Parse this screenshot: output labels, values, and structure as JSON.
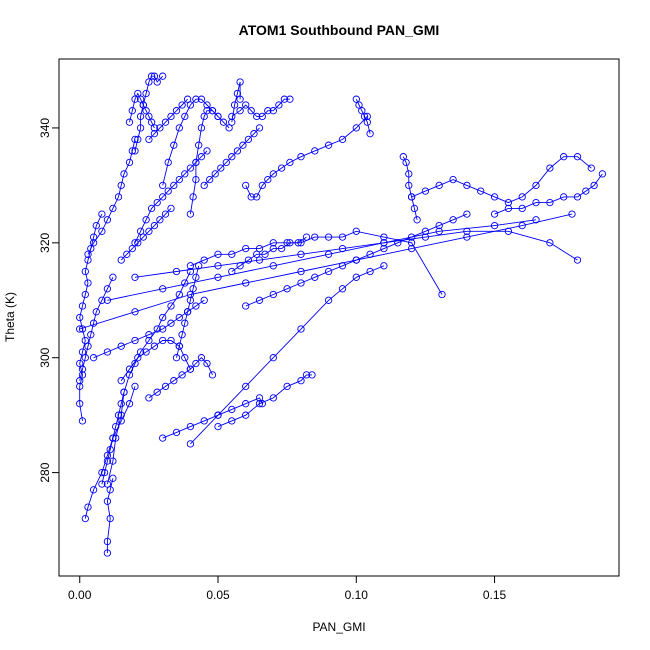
{
  "chart_data": {
    "type": "scatter",
    "title": "ATOM1 Southbound PAN_GMI",
    "xlabel": "PAN_GMI",
    "ylabel": "Theta (K)",
    "xlim": [
      -0.0075,
      0.195
    ],
    "ylim": [
      262,
      352
    ],
    "x_ticks": [
      0.0,
      0.05,
      0.1,
      0.15
    ],
    "x_tick_labels": [
      "0.00",
      "0.05",
      "0.10",
      "0.15"
    ],
    "y_ticks": [
      280,
      300,
      320,
      340
    ],
    "y_tick_labels": [
      "280",
      "300",
      "320",
      "340"
    ],
    "grid": false,
    "legend": "none",
    "marker": "open-circle",
    "connected": true,
    "color": "#0000ff",
    "series": [
      {
        "x": [
          0.01,
          0.01,
          0.011,
          0.01,
          0.011,
          0.012
        ],
        "y": [
          266,
          268,
          272,
          275,
          277,
          279
        ]
      },
      {
        "x": [
          0.002,
          0.003,
          0.005,
          0.008,
          0.01,
          0.012,
          0.015,
          0.018,
          0.02
        ],
        "y": [
          272,
          274,
          277,
          280,
          283,
          286,
          289,
          292,
          295
        ]
      },
      {
        "x": [
          0.01,
          0.012,
          0.013,
          0.015,
          0.016,
          0.018,
          0.02,
          0.022,
          0.025,
          0.028,
          0.03,
          0.033,
          0.036,
          0.038,
          0.04
        ],
        "y": [
          278,
          282,
          286,
          290,
          294,
          297,
          299,
          301,
          303,
          305,
          307,
          309,
          311,
          313,
          315
        ]
      },
      {
        "x": [
          0.001,
          0.0,
          0.0,
          0.001,
          0.0,
          0.001,
          0.002,
          0.001,
          0.0,
          0.001,
          0.002,
          0.003,
          0.002,
          0.003,
          0.004,
          0.005,
          0.006,
          0.008
        ],
        "y": [
          289,
          292,
          295,
          297,
          299,
          301,
          303,
          305,
          307,
          309,
          311,
          313,
          315,
          317,
          319,
          321,
          323,
          325
        ]
      },
      {
        "x": [
          0.003,
          0.005,
          0.008,
          0.01,
          0.012,
          0.014,
          0.015,
          0.016,
          0.018,
          0.019,
          0.02
        ],
        "y": [
          318,
          320,
          322,
          324,
          326,
          328,
          330,
          332,
          334,
          336,
          338
        ]
      },
      {
        "x": [
          0.02,
          0.021,
          0.022,
          0.022,
          0.023,
          0.024,
          0.025,
          0.026,
          0.027,
          0.028,
          0.03
        ],
        "y": [
          336,
          338,
          340,
          342,
          344,
          346,
          348,
          349,
          349,
          348,
          349
        ]
      },
      {
        "x": [
          0.018,
          0.019,
          0.02,
          0.021,
          0.022,
          0.023,
          0.024,
          0.025,
          0.026,
          0.027
        ],
        "y": [
          341,
          343,
          345,
          346,
          345,
          344,
          343,
          342,
          341,
          340
        ]
      },
      {
        "x": [
          0.03,
          0.032,
          0.034,
          0.036,
          0.038,
          0.04,
          0.042,
          0.044,
          0.046,
          0.048,
          0.05,
          0.052,
          0.054
        ],
        "y": [
          330,
          334,
          337,
          340,
          342,
          344,
          345,
          345,
          344,
          343,
          342,
          341,
          340
        ]
      },
      {
        "x": [
          0.04,
          0.041,
          0.042,
          0.042,
          0.043,
          0.044,
          0.045,
          0.046,
          0.048,
          0.05
        ],
        "y": [
          325,
          328,
          331,
          334,
          337,
          340,
          342,
          343,
          343,
          342
        ]
      },
      {
        "x": [
          0.055,
          0.058,
          0.06,
          0.062,
          0.064,
          0.066,
          0.068,
          0.07,
          0.072,
          0.074,
          0.076
        ],
        "y": [
          342,
          343,
          344,
          343,
          342,
          342,
          343,
          343,
          344,
          345,
          345
        ]
      },
      {
        "x": [
          0.055,
          0.056,
          0.057,
          0.058,
          0.058
        ],
        "y": [
          341,
          344,
          346,
          348,
          345
        ]
      },
      {
        "x": [
          0.06,
          0.062,
          0.064,
          0.066,
          0.068,
          0.07,
          0.073,
          0.076,
          0.08,
          0.085,
          0.09,
          0.095,
          0.1,
          0.104
        ],
        "y": [
          330,
          328,
          328,
          330,
          331,
          332,
          333,
          334,
          335,
          336,
          337,
          338,
          340,
          342
        ]
      },
      {
        "x": [
          0.1,
          0.101,
          0.102,
          0.103,
          0.104,
          0.105
        ],
        "y": [
          345,
          344,
          343,
          342,
          341,
          339
        ]
      },
      {
        "x": [
          0.117,
          0.118,
          0.119,
          0.119,
          0.12,
          0.121,
          0.122
        ],
        "y": [
          335,
          334,
          332,
          330,
          328,
          326,
          324
        ]
      },
      {
        "x": [
          0.12,
          0.125,
          0.13,
          0.135,
          0.14,
          0.145,
          0.15,
          0.155,
          0.16,
          0.165,
          0.17,
          0.175,
          0.18,
          0.185
        ],
        "y": [
          328,
          329,
          330,
          331,
          330,
          329,
          328,
          327,
          328,
          330,
          333,
          335,
          335,
          333
        ]
      },
      {
        "x": [
          0.15,
          0.155,
          0.16,
          0.165,
          0.17,
          0.175,
          0.18,
          0.183,
          0.186,
          0.189
        ],
        "y": [
          325,
          326,
          326,
          327,
          327,
          328,
          328,
          329,
          330,
          332
        ]
      },
      {
        "x": [
          0.0,
          0.02,
          0.04,
          0.06,
          0.08,
          0.1,
          0.12,
          0.14,
          0.16,
          0.178
        ],
        "y": [
          305,
          308,
          311,
          313,
          315,
          317,
          319,
          321,
          323,
          325
        ]
      },
      {
        "x": [
          0.01,
          0.03,
          0.05,
          0.07,
          0.09,
          0.11,
          0.13,
          0.15,
          0.165
        ],
        "y": [
          310,
          312,
          314,
          316,
          318,
          320,
          322,
          323,
          324
        ]
      },
      {
        "x": [
          0.02,
          0.035,
          0.05,
          0.065,
          0.08,
          0.095,
          0.11,
          0.125,
          0.14,
          0.155,
          0.17,
          0.18
        ],
        "y": [
          314,
          315,
          316,
          317,
          318,
          319,
          320,
          321,
          322,
          322,
          320,
          317
        ]
      },
      {
        "x": [
          0.04,
          0.045,
          0.05,
          0.055,
          0.06,
          0.065,
          0.07,
          0.075,
          0.08,
          0.085,
          0.09,
          0.095,
          0.1,
          0.11,
          0.12,
          0.131
        ],
        "y": [
          316,
          317,
          318,
          318,
          319,
          319,
          320,
          320,
          320,
          321,
          321,
          321,
          322,
          321,
          320,
          311
        ]
      },
      {
        "x": [
          0.04,
          0.05,
          0.06,
          0.07,
          0.08,
          0.09,
          0.095,
          0.1,
          0.105,
          0.11
        ],
        "y": [
          285,
          290,
          295,
          300,
          305,
          310,
          312,
          314,
          315,
          316
        ]
      },
      {
        "x": [
          0.05,
          0.055,
          0.06,
          0.065,
          0.07,
          0.075,
          0.08,
          0.082,
          0.084
        ],
        "y": [
          288,
          289,
          290,
          292,
          293,
          295,
          296,
          297,
          297
        ]
      },
      {
        "x": [
          0.03,
          0.035,
          0.04,
          0.045,
          0.05,
          0.055,
          0.06,
          0.065,
          0.066
        ],
        "y": [
          286,
          287,
          288,
          289,
          290,
          291,
          292,
          293,
          292
        ]
      },
      {
        "x": [
          0.025,
          0.028,
          0.031,
          0.034,
          0.037,
          0.04,
          0.042,
          0.044,
          0.046,
          0.048
        ],
        "y": [
          293,
          294,
          295,
          296,
          297,
          298,
          299,
          300,
          299,
          297
        ]
      },
      {
        "x": [
          0.005,
          0.01,
          0.015,
          0.02,
          0.025,
          0.03,
          0.033,
          0.036,
          0.039,
          0.042,
          0.045
        ],
        "y": [
          300,
          301,
          302,
          303,
          304,
          305,
          306,
          307,
          308,
          309,
          310
        ]
      },
      {
        "x": [
          0.015,
          0.018,
          0.021,
          0.024,
          0.027,
          0.03,
          0.033,
          0.036,
          0.038,
          0.04
        ],
        "y": [
          296,
          298,
          300,
          301,
          302,
          303,
          303,
          302,
          300,
          298
        ]
      },
      {
        "x": [
          0.02,
          0.022,
          0.024,
          0.026,
          0.028,
          0.03,
          0.032,
          0.034,
          0.036,
          0.038,
          0.04,
          0.042,
          0.044,
          0.046
        ],
        "y": [
          320,
          322,
          324,
          326,
          327,
          328,
          329,
          330,
          331,
          332,
          333,
          334,
          335,
          336
        ]
      },
      {
        "x": [
          0.045,
          0.047,
          0.049,
          0.051,
          0.053,
          0.055,
          0.057,
          0.059,
          0.061,
          0.063,
          0.065
        ],
        "y": [
          330,
          331,
          332,
          333,
          334,
          335,
          336,
          337,
          338,
          339,
          340
        ]
      },
      {
        "x": [
          0.035,
          0.036,
          0.037,
          0.038,
          0.039,
          0.04,
          0.041,
          0.042,
          0.043
        ],
        "y": [
          300,
          302,
          304,
          306,
          308,
          310,
          312,
          314,
          316
        ]
      },
      {
        "x": [
          0.0,
          0.001,
          0.002,
          0.003,
          0.004,
          0.005,
          0.006,
          0.008,
          0.01,
          0.012
        ],
        "y": [
          296,
          298,
          300,
          302,
          304,
          306,
          308,
          310,
          312,
          314
        ]
      },
      {
        "x": [
          0.008,
          0.009,
          0.01,
          0.011,
          0.012,
          0.013,
          0.014,
          0.015,
          0.016
        ],
        "y": [
          278,
          280,
          282,
          284,
          286,
          288,
          290,
          292,
          294
        ]
      },
      {
        "x": [
          0.015,
          0.017,
          0.019,
          0.021,
          0.023,
          0.025,
          0.027,
          0.029,
          0.031,
          0.033
        ],
        "y": [
          317,
          318,
          319,
          320,
          321,
          322,
          323,
          324,
          325,
          326
        ]
      },
      {
        "x": [
          0.055,
          0.058,
          0.061,
          0.064,
          0.067,
          0.07,
          0.073,
          0.076,
          0.079,
          0.082
        ],
        "y": [
          315,
          316,
          317,
          318,
          318,
          319,
          319,
          320,
          320,
          321
        ]
      },
      {
        "x": [
          0.06,
          0.065,
          0.07,
          0.075,
          0.08,
          0.085,
          0.09,
          0.095,
          0.1,
          0.105,
          0.11,
          0.115,
          0.12,
          0.125,
          0.13,
          0.135,
          0.14
        ],
        "y": [
          309,
          310,
          311,
          312,
          313,
          314,
          315,
          316,
          317,
          318,
          319,
          320,
          321,
          322,
          323,
          324,
          325
        ]
      },
      {
        "x": [
          0.025,
          0.027,
          0.029,
          0.031,
          0.033,
          0.035,
          0.037,
          0.039
        ],
        "y": [
          338,
          339,
          340,
          341,
          342,
          343,
          344,
          345
        ]
      }
    ]
  }
}
